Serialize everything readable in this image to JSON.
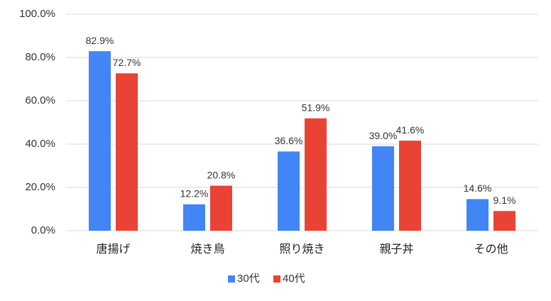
{
  "chart_data": {
    "type": "bar",
    "categories": [
      "唐揚げ",
      "焼き鳥",
      "照り焼き",
      "親子丼",
      "その他"
    ],
    "series": [
      {
        "name": "30代",
        "color": "#4285f4",
        "values": [
          82.9,
          12.2,
          36.6,
          39.0,
          14.6
        ],
        "value_labels": [
          "82.9%",
          "12.2%",
          "36.6%",
          "39.0%",
          "14.6%"
        ]
      },
      {
        "name": "40代",
        "color": "#ea4335",
        "values": [
          72.7,
          20.8,
          51.9,
          41.6,
          9.1
        ],
        "value_labels": [
          "72.7%",
          "20.8%",
          "51.9%",
          "41.6%",
          "9.1%"
        ]
      }
    ],
    "ylim": [
      0,
      100
    ],
    "yticks": [
      {
        "value": 0,
        "label": "0.0%"
      },
      {
        "value": 20,
        "label": "20.0%"
      },
      {
        "value": 40,
        "label": "40.0%"
      },
      {
        "value": 60,
        "label": "60.0%"
      },
      {
        "value": 80,
        "label": "80.0%"
      },
      {
        "value": 100,
        "label": "100.0%"
      }
    ],
    "grid": true,
    "legend": "bottom"
  }
}
